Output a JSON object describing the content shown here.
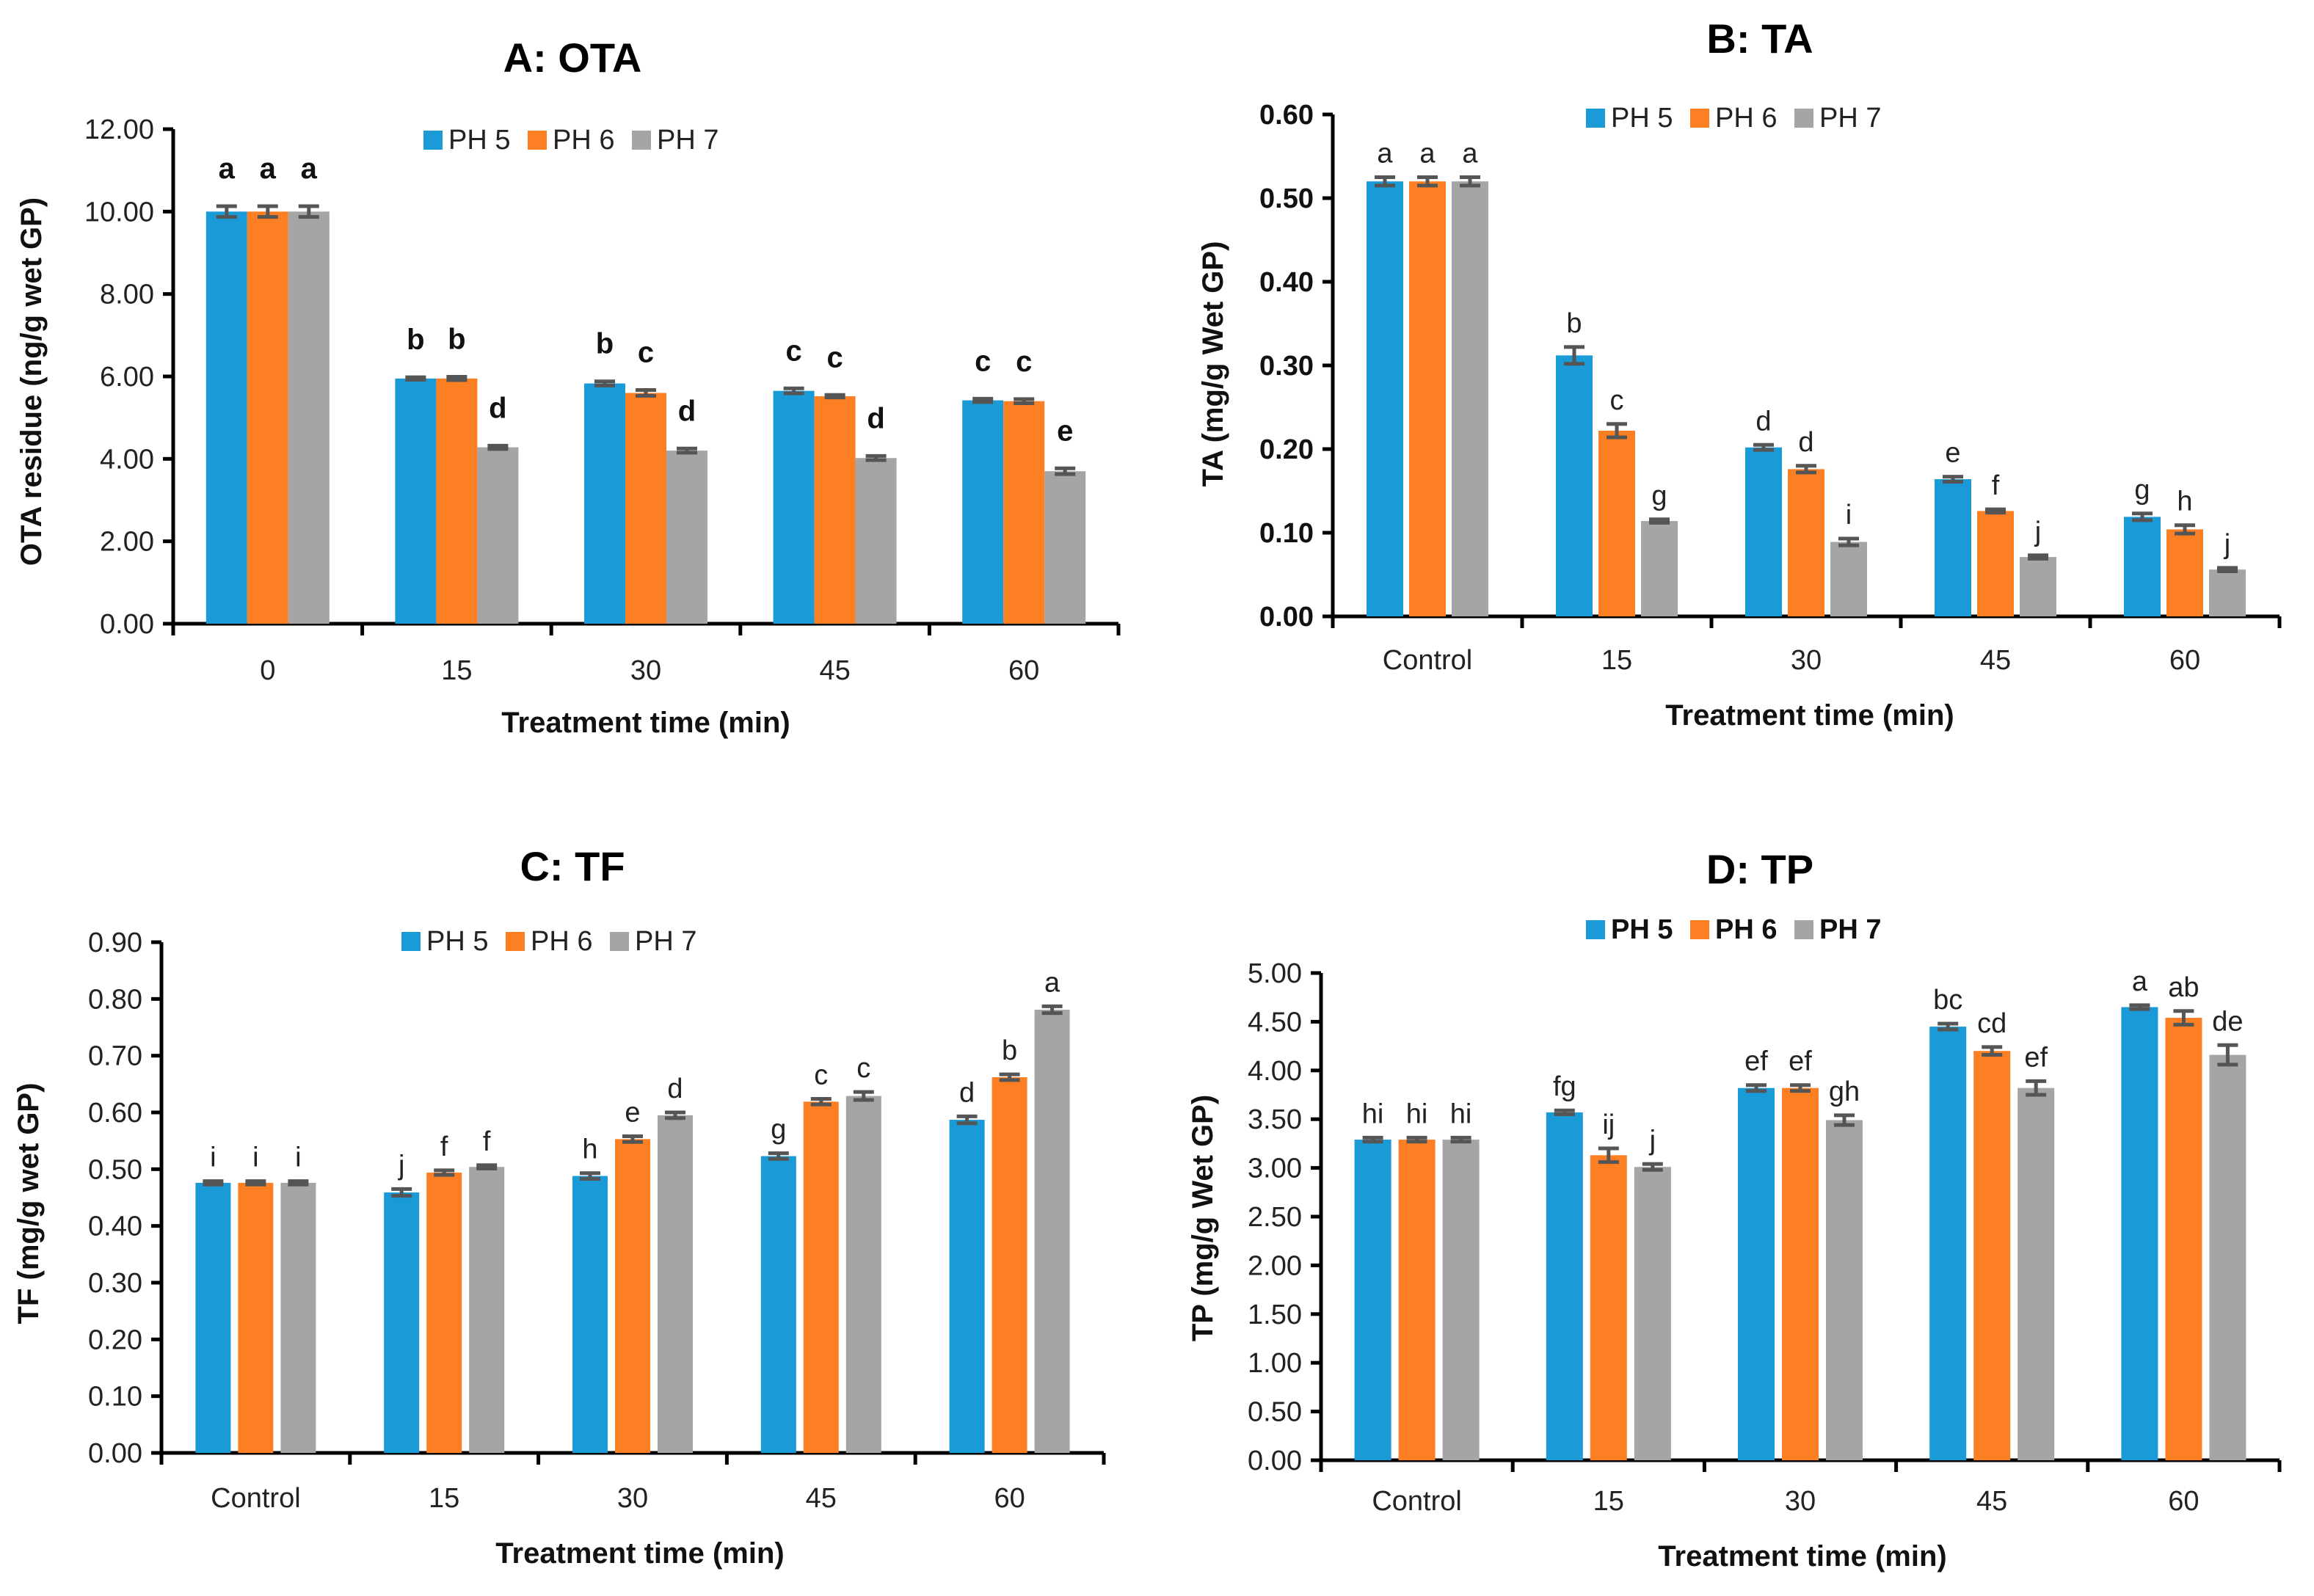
{
  "figure": {
    "series_names": [
      "PH 5",
      "PH 6",
      "PH 7"
    ],
    "colors": {
      "ph5": "#1a9ad6",
      "ph6": "#fd7f23",
      "ph7": "#a5a5a5",
      "error_bar": "#555555"
    }
  },
  "chart_data": [
    {
      "id": "A",
      "type": "bar",
      "title": "A: OTA",
      "xlabel": "Treatment time (min)",
      "ylabel": "OTA residue (ng/g wet GP)",
      "categories": [
        "0",
        "15",
        "30",
        "45",
        "60"
      ],
      "ylim": [
        0,
        12
      ],
      "yticks": [
        0,
        2,
        4,
        6,
        8,
        10,
        12
      ],
      "ytick_labels": [
        "0.00",
        "2.00",
        "4.00",
        "6.00",
        "8.00",
        "10.00",
        "12.00"
      ],
      "legend": [
        "PH 5",
        "PH 6",
        "PH 7"
      ],
      "legend_position": "top-center",
      "grid": false,
      "series": [
        {
          "name": "PH 5",
          "values": [
            10.0,
            5.95,
            5.83,
            5.65,
            5.42
          ],
          "errors": [
            0.13,
            0.03,
            0.05,
            0.06,
            0.04
          ],
          "letters": [
            "a",
            "b",
            "b",
            "c",
            "c"
          ]
        },
        {
          "name": "PH 6",
          "values": [
            10.0,
            5.95,
            5.6,
            5.52,
            5.4
          ],
          "errors": [
            0.13,
            0.04,
            0.07,
            0.03,
            0.05
          ],
          "letters": [
            "a",
            "b",
            "c",
            "c",
            "c"
          ]
        },
        {
          "name": "PH 7",
          "values": [
            10.0,
            4.28,
            4.2,
            4.02,
            3.7
          ],
          "errors": [
            0.13,
            0.04,
            0.05,
            0.05,
            0.07
          ],
          "letters": [
            "a",
            "d",
            "d",
            "d",
            "e"
          ]
        }
      ]
    },
    {
      "id": "B",
      "type": "bar",
      "title": "B: TA",
      "xlabel": "Treatment time (min)",
      "ylabel": "TA (mg/g Wet GP)",
      "categories": [
        "Control",
        "15",
        "30",
        "45",
        "60"
      ],
      "ylim": [
        0,
        0.6
      ],
      "yticks": [
        0,
        0.1,
        0.2,
        0.3,
        0.4,
        0.5,
        0.6
      ],
      "ytick_labels": [
        "0.00",
        "0.10",
        "0.20",
        "0.30",
        "0.40",
        "0.50",
        "0.60"
      ],
      "legend": [
        "PH 5",
        "PH 6",
        "PH 7"
      ],
      "legend_position": "top-center",
      "grid": false,
      "series": [
        {
          "name": "PH 5",
          "values": [
            0.52,
            0.312,
            0.202,
            0.164,
            0.119
          ],
          "errors": [
            0.005,
            0.01,
            0.003,
            0.003,
            0.004
          ],
          "letters": [
            "a",
            "b",
            "d",
            "e",
            "g"
          ]
        },
        {
          "name": "PH 6",
          "values": [
            0.52,
            0.222,
            0.176,
            0.126,
            0.104
          ],
          "errors": [
            0.005,
            0.008,
            0.004,
            0.002,
            0.005
          ],
          "letters": [
            "a",
            "c",
            "d",
            "f",
            "h"
          ]
        },
        {
          "name": "PH 7",
          "values": [
            0.52,
            0.114,
            0.089,
            0.071,
            0.056
          ],
          "errors": [
            0.005,
            0.002,
            0.004,
            0.002,
            0.002
          ],
          "letters": [
            "a",
            "g",
            "i",
            "j",
            "j"
          ]
        }
      ]
    },
    {
      "id": "C",
      "type": "bar",
      "title": "C: TF",
      "xlabel": "Treatment time (min)",
      "ylabel": "TF (mg/g wet GP)",
      "categories": [
        "Control",
        "15",
        "30",
        "45",
        "60"
      ],
      "ylim": [
        0,
        0.9
      ],
      "yticks": [
        0,
        0.1,
        0.2,
        0.3,
        0.4,
        0.5,
        0.6,
        0.7,
        0.8,
        0.9
      ],
      "ytick_labels": [
        "0.00",
        "0.10",
        "0.20",
        "0.30",
        "0.40",
        "0.50",
        "0.60",
        "0.70",
        "0.80",
        "0.90"
      ],
      "legend": [
        "PH 5",
        "PH 6",
        "PH 7"
      ],
      "legend_position": "top-center",
      "grid": false,
      "series": [
        {
          "name": "PH 5",
          "values": [
            0.476,
            0.459,
            0.488,
            0.523,
            0.587
          ],
          "errors": [
            0.003,
            0.006,
            0.005,
            0.005,
            0.006
          ],
          "letters": [
            "i",
            "j",
            "h",
            "g",
            "d"
          ]
        },
        {
          "name": "PH 6",
          "values": [
            0.476,
            0.494,
            0.553,
            0.619,
            0.662
          ],
          "errors": [
            0.003,
            0.004,
            0.005,
            0.005,
            0.005
          ],
          "letters": [
            "i",
            "f",
            "e",
            "c",
            "b"
          ]
        },
        {
          "name": "PH 7",
          "values": [
            0.476,
            0.504,
            0.595,
            0.629,
            0.781
          ],
          "errors": [
            0.003,
            0.003,
            0.005,
            0.007,
            0.006
          ],
          "letters": [
            "i",
            "f",
            "d",
            "c",
            "a"
          ]
        }
      ]
    },
    {
      "id": "D",
      "type": "bar",
      "title": "D: TP",
      "xlabel": "Treatment time (min)",
      "ylabel": "TP (mg/g Wet GP)",
      "categories": [
        "Control",
        "15",
        "30",
        "45",
        "60"
      ],
      "ylim": [
        0,
        5
      ],
      "yticks": [
        0,
        0.5,
        1,
        1.5,
        2,
        2.5,
        3,
        3.5,
        4,
        4.5,
        5
      ],
      "ytick_labels": [
        "0.00",
        "0.50",
        "1.00",
        "1.50",
        "2.00",
        "2.50",
        "3.00",
        "3.50",
        "4.00",
        "4.50",
        "5.00"
      ],
      "legend": [
        "PH 5",
        "PH 6",
        "PH 7"
      ],
      "legend_position": "top-center",
      "grid": false,
      "series": [
        {
          "name": "PH 5",
          "values": [
            3.29,
            3.57,
            3.82,
            4.45,
            4.65
          ],
          "errors": [
            0.02,
            0.02,
            0.03,
            0.03,
            0.02
          ],
          "letters": [
            "hi",
            "fg",
            "ef",
            "bc",
            "a"
          ]
        },
        {
          "name": "PH 6",
          "values": [
            3.29,
            3.13,
            3.82,
            4.2,
            4.54
          ],
          "errors": [
            0.02,
            0.07,
            0.03,
            0.04,
            0.07
          ],
          "letters": [
            "hi",
            "ij",
            "ef",
            "cd",
            "ab"
          ]
        },
        {
          "name": "PH 7",
          "values": [
            3.29,
            3.01,
            3.49,
            3.82,
            4.16
          ],
          "errors": [
            0.02,
            0.03,
            0.05,
            0.07,
            0.1
          ],
          "letters": [
            "hi",
            "j",
            "gh",
            "ef",
            "de"
          ]
        }
      ]
    }
  ]
}
